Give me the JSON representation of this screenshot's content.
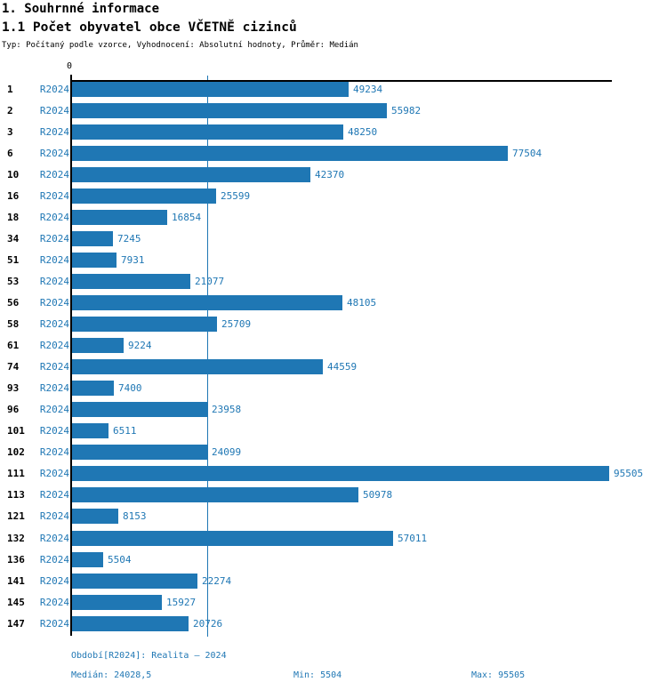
{
  "header": {
    "title": "1. Souhrnné informace",
    "subtitle": "1.1 Počet obyvatel obce VČETNĚ cizinců",
    "meta": "Typ: Počítaný podle vzorce, Vyhodnocení: Absolutní hodnoty, Průměr: Medián"
  },
  "chart_data": {
    "type": "bar",
    "orientation": "horizontal",
    "title": "1.1 Počet obyvatel obce VČETNĚ cizinců",
    "xlabel": "",
    "ylabel": "",
    "xlim": [
      0,
      95505
    ],
    "x_axis_zero_label": "0",
    "grid": "single vertical gridline at median value",
    "gridline_value": 24028.5,
    "legend": "none",
    "value_labels": true,
    "bar_color": "#1f77b4",
    "label_color": "#1f77b4",
    "axis_color": "#000000",
    "series_label": "R2024",
    "categories": [
      "1",
      "2",
      "3",
      "6",
      "10",
      "16",
      "18",
      "34",
      "51",
      "53",
      "56",
      "58",
      "61",
      "74",
      "93",
      "96",
      "101",
      "102",
      "111",
      "113",
      "121",
      "132",
      "136",
      "141",
      "145",
      "147"
    ],
    "values": [
      49234,
      55982,
      48250,
      77504,
      42370,
      25599,
      16854,
      7245,
      7931,
      21077,
      48105,
      25709,
      9224,
      44559,
      7400,
      23958,
      6511,
      24099,
      95505,
      50978,
      8153,
      57011,
      5504,
      22274,
      15927,
      20726
    ]
  },
  "footer": {
    "period": "Období[R2024]: Realita – 2024",
    "median": "Medián: 24028,5",
    "min": "Min: 5504",
    "max": "Max: 95505"
  }
}
